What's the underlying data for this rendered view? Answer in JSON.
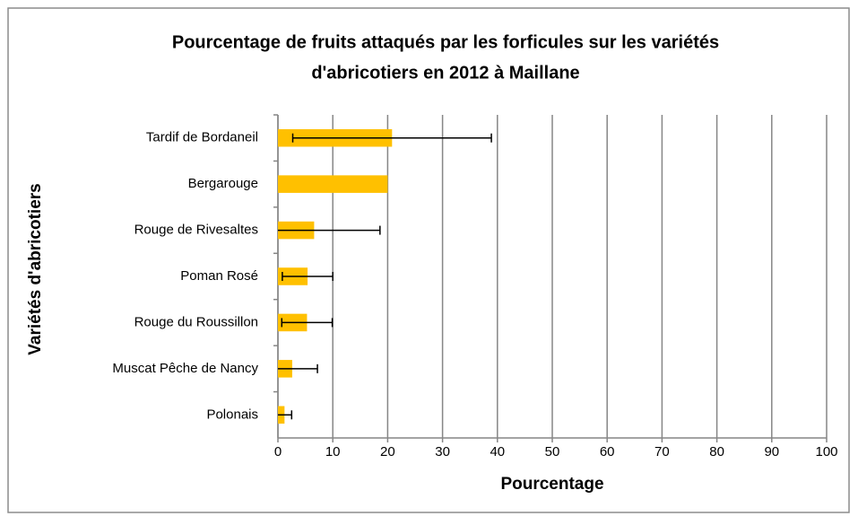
{
  "chart_data": {
    "type": "bar",
    "orientation": "horizontal",
    "title": "Pourcentage de fruits attaqués par les forficules sur les variétés d'abricotiers en 2012 à Maillane",
    "title_lines": [
      "Pourcentage de fruits attaqués par les forficules sur les variétés",
      "d'abricotiers en 2012 à Maillane"
    ],
    "x_label": "Pourcentage",
    "y_label": "Variétés d'abricotiers",
    "categories": [
      "Tardif de Bordaneil",
      "Bergarouge",
      "Rouge de Rivesaltes",
      "Poman Rosé",
      "Rouge du Roussillon",
      "Muscat Pêche de Nancy",
      "Polonais"
    ],
    "values": [
      20.8,
      20,
      6.6,
      5.4,
      5.3,
      2.6,
      1.2
    ],
    "errors": [
      18.1,
      null,
      12,
      4.6,
      4.6,
      4.6,
      1.3
    ],
    "color": "#ffc000",
    "xlim": [
      0,
      100
    ],
    "xticks": [
      0,
      10,
      20,
      30,
      40,
      50,
      60,
      70,
      80,
      90,
      100
    ],
    "grid": true
  }
}
